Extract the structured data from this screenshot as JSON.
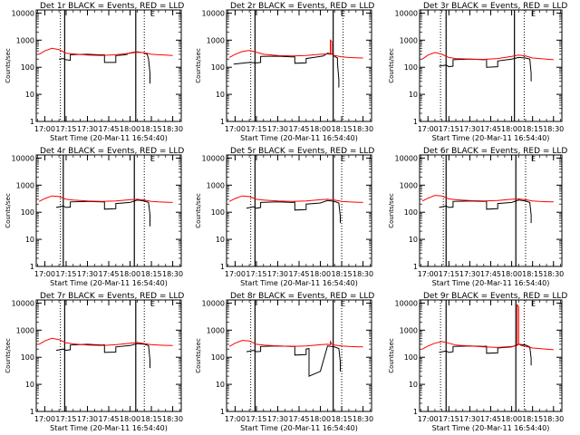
{
  "figure": {
    "x_label": "Start Time (20-Mar-11 16:54:40)",
    "y_label": "Counts/sec",
    "x_tick_labels": [
      "17:00",
      "17:15",
      "17:30",
      "17:45",
      "18:00",
      "18:15",
      "18:30"
    ],
    "y_tick_labels": [
      "1",
      "10",
      "100",
      "1000",
      "10000"
    ],
    "corner_mark": "E",
    "colors": {
      "events": "#000000",
      "lld": "#ff0000",
      "axes": "#000000",
      "background": "#ffffff"
    }
  },
  "chart_data": [
    {
      "type": "line",
      "title": "Det 1r BLACK = Events, RED = LLD",
      "xlabel": "Start Time (20-Mar-11 16:54:40)",
      "ylabel": "Counts/sec",
      "xlim": [
        "16:54",
        "18:36"
      ],
      "ylim": [
        1,
        13000
      ],
      "y_scale": "log",
      "vlines": {
        "solid": [
          "17:14",
          "18:04"
        ],
        "dotted": [
          "17:11",
          "18:10"
        ]
      },
      "series": [
        {
          "name": "Events",
          "color": "#000000",
          "x": [
            "17:10",
            "17:13",
            "17:15",
            "17:18",
            "17:18",
            "17:30",
            "17:40",
            "17:42",
            "17:42",
            "17:50",
            "17:50",
            "17:55",
            "17:58",
            "17:58",
            "18:02",
            "18:05",
            "18:10",
            "18:12",
            "18:13",
            "18:14",
            "18:14"
          ],
          "y": [
            200,
            210,
            190,
            180,
            290,
            300,
            285,
            290,
            150,
            150,
            270,
            280,
            300,
            320,
            350,
            370,
            340,
            300,
            200,
            60,
            25
          ]
        },
        {
          "name": "LLD",
          "color": "#ff0000",
          "x": [
            "16:56",
            "17:00",
            "17:05",
            "17:10",
            "17:15",
            "17:20",
            "17:30",
            "17:40",
            "17:50",
            "18:00",
            "18:05",
            "18:10",
            "18:15",
            "18:20",
            "18:25",
            "18:30"
          ],
          "y": [
            300,
            400,
            500,
            450,
            330,
            310,
            280,
            270,
            290,
            330,
            360,
            340,
            300,
            290,
            280,
            270
          ]
        }
      ]
    },
    {
      "type": "line",
      "title": "Det 2r BLACK = Events, RED = LLD",
      "xlabel": "Start Time (20-Mar-11 16:54:40)",
      "ylabel": "Counts/sec",
      "xlim": [
        "16:54",
        "18:36"
      ],
      "ylim": [
        1,
        13000
      ],
      "y_scale": "log",
      "vlines": {
        "solid": [
          "17:14",
          "18:09"
        ],
        "dotted": [
          "17:11",
          "18:16"
        ]
      },
      "series": [
        {
          "name": "Events",
          "color": "#000000",
          "x": [
            "16:59",
            "17:05",
            "17:10",
            "17:15",
            "17:18",
            "17:18",
            "17:30",
            "17:40",
            "17:42",
            "17:42",
            "17:50",
            "17:50",
            "17:58",
            "18:02",
            "18:05",
            "18:09",
            "18:10",
            "18:12",
            "18:12",
            "18:13",
            "18:13"
          ],
          "y": [
            130,
            140,
            150,
            145,
            150,
            250,
            255,
            240,
            245,
            140,
            145,
            210,
            240,
            260,
            330,
            300,
            250,
            220,
            140,
            35,
            18
          ]
        },
        {
          "name": "LLD",
          "color": "#ff0000",
          "x": [
            "16:56",
            "17:00",
            "17:05",
            "17:10",
            "17:15",
            "17:20",
            "17:30",
            "17:40",
            "17:50",
            "18:00",
            "18:05",
            "18:07",
            "18:07",
            "18:08",
            "18:08",
            "18:10",
            "18:15",
            "18:20",
            "18:25",
            "18:30"
          ],
          "y": [
            230,
            300,
            380,
            420,
            360,
            300,
            270,
            260,
            270,
            300,
            310,
            300,
            1000,
            900,
            300,
            270,
            240,
            230,
            225,
            220
          ]
        }
      ]
    },
    {
      "type": "line",
      "title": "Det 3r BLACK = Events, RED = LLD",
      "xlabel": "Start Time (20-Mar-11 16:54:40)",
      "ylabel": "Counts/sec",
      "xlim": [
        "16:54",
        "18:36"
      ],
      "ylim": [
        1,
        13000
      ],
      "y_scale": "log",
      "vlines": {
        "solid": [
          "17:13",
          "18:02"
        ],
        "dotted": [
          "17:09",
          "18:09"
        ]
      },
      "series": [
        {
          "name": "Events",
          "color": "#000000",
          "x": [
            "17:08",
            "17:13",
            "17:15",
            "17:18",
            "17:18",
            "17:30",
            "17:40",
            "17:42",
            "17:42",
            "17:50",
            "17:50",
            "18:00",
            "18:05",
            "18:10",
            "18:13",
            "18:14",
            "18:14"
          ],
          "y": [
            110,
            120,
            105,
            110,
            190,
            200,
            190,
            195,
            100,
            105,
            170,
            200,
            230,
            220,
            200,
            60,
            30
          ]
        },
        {
          "name": "LLD",
          "color": "#ff0000",
          "x": [
            "16:56",
            "17:00",
            "17:05",
            "17:10",
            "17:15",
            "17:20",
            "17:30",
            "17:40",
            "17:50",
            "18:00",
            "18:05",
            "18:10",
            "18:15",
            "18:20",
            "18:25",
            "18:30"
          ],
          "y": [
            200,
            280,
            350,
            300,
            230,
            210,
            200,
            195,
            210,
            250,
            280,
            260,
            220,
            210,
            200,
            190
          ]
        }
      ]
    },
    {
      "type": "line",
      "title": "Det 4r BLACK = Events, RED = LLD",
      "xlabel": "Start Time (20-Mar-11 16:54:40)",
      "ylabel": "Counts/sec",
      "xlim": [
        "16:54",
        "18:36"
      ],
      "ylim": [
        1,
        13000
      ],
      "y_scale": "log",
      "vlines": {
        "solid": [
          "17:13",
          "18:03"
        ],
        "dotted": [
          "17:11",
          "18:10"
        ]
      },
      "series": [
        {
          "name": "Events",
          "color": "#000000",
          "x": [
            "17:08",
            "17:13",
            "17:15",
            "17:18",
            "17:18",
            "17:30",
            "17:40",
            "17:42",
            "17:42",
            "17:50",
            "17:50",
            "18:00",
            "18:05",
            "18:10",
            "18:13",
            "18:14",
            "18:14"
          ],
          "y": [
            150,
            170,
            150,
            155,
            240,
            250,
            240,
            245,
            130,
            135,
            210,
            230,
            280,
            260,
            230,
            80,
            30
          ]
        },
        {
          "name": "LLD",
          "color": "#ff0000",
          "x": [
            "16:56",
            "17:00",
            "17:05",
            "17:10",
            "17:15",
            "17:20",
            "17:30",
            "17:40",
            "17:50",
            "18:00",
            "18:05",
            "18:10",
            "18:15",
            "18:20",
            "18:25",
            "18:30"
          ],
          "y": [
            250,
            320,
            400,
            380,
            300,
            280,
            260,
            250,
            260,
            290,
            300,
            280,
            250,
            240,
            235,
            230
          ]
        }
      ]
    },
    {
      "type": "line",
      "title": "Det 5r BLACK = Events, RED = LLD",
      "xlabel": "Start Time (20-Mar-11 16:54:40)",
      "ylabel": "Counts/sec",
      "xlim": [
        "16:54",
        "18:36"
      ],
      "ylim": [
        1,
        13000
      ],
      "y_scale": "log",
      "vlines": {
        "solid": [
          "17:14",
          "18:09"
        ],
        "dotted": [
          "17:11",
          "18:15"
        ]
      },
      "series": [
        {
          "name": "Events",
          "color": "#000000",
          "x": [
            "17:08",
            "17:13",
            "17:15",
            "17:18",
            "17:18",
            "17:30",
            "17:40",
            "17:42",
            "17:42",
            "17:50",
            "17:50",
            "18:00",
            "18:05",
            "18:10",
            "18:13",
            "18:14",
            "18:14"
          ],
          "y": [
            140,
            160,
            140,
            150,
            230,
            240,
            230,
            235,
            120,
            125,
            200,
            220,
            270,
            250,
            220,
            70,
            40
          ]
        },
        {
          "name": "LLD",
          "color": "#ff0000",
          "x": [
            "16:56",
            "17:00",
            "17:05",
            "17:10",
            "17:15",
            "17:20",
            "17:30",
            "17:40",
            "17:50",
            "18:00",
            "18:05",
            "18:10",
            "18:15",
            "18:20",
            "18:25",
            "18:30"
          ],
          "y": [
            250,
            320,
            400,
            380,
            300,
            280,
            260,
            250,
            260,
            290,
            300,
            280,
            250,
            240,
            235,
            230
          ]
        }
      ]
    },
    {
      "type": "line",
      "title": "Det 6r BLACK = Events, RED = LLD",
      "xlabel": "Start Time (20-Mar-11 16:54:40)",
      "ylabel": "Counts/sec",
      "xlim": [
        "16:54",
        "18:36"
      ],
      "ylim": [
        1,
        13000
      ],
      "y_scale": "log",
      "vlines": {
        "solid": [
          "17:13",
          "18:03"
        ],
        "dotted": [
          "17:11",
          "18:10"
        ]
      },
      "series": [
        {
          "name": "Events",
          "color": "#000000",
          "x": [
            "17:08",
            "17:13",
            "17:15",
            "17:18",
            "17:18",
            "17:30",
            "17:40",
            "17:42",
            "17:42",
            "17:50",
            "17:50",
            "18:00",
            "18:05",
            "18:10",
            "18:13",
            "18:14",
            "18:14"
          ],
          "y": [
            150,
            170,
            150,
            155,
            250,
            260,
            250,
            255,
            130,
            135,
            210,
            230,
            280,
            260,
            230,
            80,
            40
          ]
        },
        {
          "name": "LLD",
          "color": "#ff0000",
          "x": [
            "16:56",
            "17:00",
            "17:05",
            "17:10",
            "17:15",
            "17:20",
            "17:30",
            "17:40",
            "17:50",
            "18:00",
            "18:05",
            "18:10",
            "18:15",
            "18:20",
            "18:25",
            "18:30"
          ],
          "y": [
            260,
            330,
            420,
            400,
            310,
            290,
            270,
            260,
            270,
            300,
            310,
            290,
            260,
            250,
            245,
            240
          ]
        }
      ]
    },
    {
      "type": "line",
      "title": "Det 7r BLACK = Events, RED = LLD",
      "xlabel": "Start Time (20-Mar-11 16:54:40)",
      "ylabel": "Counts/sec",
      "xlim": [
        "16:54",
        "18:36"
      ],
      "ylim": [
        1,
        13000
      ],
      "y_scale": "log",
      "vlines": {
        "solid": [
          "17:14",
          "18:04"
        ],
        "dotted": [
          "17:11",
          "18:10"
        ]
      },
      "series": [
        {
          "name": "Events",
          "color": "#000000",
          "x": [
            "17:08",
            "17:13",
            "17:15",
            "17:18",
            "17:18",
            "17:30",
            "17:40",
            "17:42",
            "17:42",
            "17:50",
            "17:50",
            "18:00",
            "18:05",
            "18:10",
            "18:13",
            "18:14",
            "18:14"
          ],
          "y": [
            180,
            200,
            180,
            190,
            280,
            300,
            280,
            290,
            150,
            155,
            240,
            270,
            320,
            300,
            270,
            80,
            40
          ]
        },
        {
          "name": "LLD",
          "color": "#ff0000",
          "x": [
            "16:56",
            "17:00",
            "17:05",
            "17:10",
            "17:15",
            "17:20",
            "17:30",
            "17:40",
            "17:50",
            "18:00",
            "18:05",
            "18:10",
            "18:15",
            "18:20",
            "18:25",
            "18:30"
          ],
          "y": [
            300,
            400,
            500,
            450,
            340,
            310,
            280,
            270,
            290,
            330,
            350,
            320,
            290,
            280,
            275,
            270
          ]
        }
      ]
    },
    {
      "type": "line",
      "title": "Det 8r BLACK = Events, RED = LLD",
      "xlabel": "Start Time (20-Mar-11 16:54:40)",
      "ylabel": "Counts/sec",
      "xlim": [
        "16:54",
        "18:36"
      ],
      "ylim": [
        1,
        13000
      ],
      "y_scale": "log",
      "vlines": {
        "solid": [
          "17:14",
          "18:09"
        ],
        "dotted": [
          "17:11",
          "18:15"
        ]
      },
      "series": [
        {
          "name": "Events",
          "color": "#000000",
          "x": [
            "17:08",
            "17:13",
            "17:15",
            "17:18",
            "17:18",
            "17:30",
            "17:40",
            "17:42",
            "17:42",
            "17:50",
            "17:50",
            "17:52",
            "17:52",
            "18:00",
            "18:05",
            "18:10",
            "18:13",
            "18:14",
            "18:14"
          ],
          "y": [
            160,
            180,
            160,
            165,
            250,
            260,
            250,
            255,
            120,
            125,
            200,
            210,
            20,
            30,
            260,
            240,
            210,
            70,
            30
          ]
        },
        {
          "name": "LLD",
          "color": "#ff0000",
          "x": [
            "16:56",
            "17:00",
            "17:05",
            "17:10",
            "17:15",
            "17:20",
            "17:30",
            "17:40",
            "17:50",
            "18:00",
            "18:05",
            "18:07",
            "18:07",
            "18:08",
            "18:10",
            "18:15",
            "18:20",
            "18:25",
            "18:30"
          ],
          "y": [
            250,
            330,
            420,
            400,
            300,
            280,
            260,
            250,
            260,
            290,
            300,
            290,
            400,
            300,
            280,
            260,
            250,
            245,
            240
          ]
        }
      ]
    },
    {
      "type": "line",
      "title": "Det 9r BLACK = Events, RED = LLD",
      "xlabel": "Start Time (20-Mar-11 16:54:40)",
      "ylabel": "Counts/sec",
      "xlim": [
        "16:54",
        "18:36"
      ],
      "ylim": [
        1,
        13000
      ],
      "y_scale": "log",
      "vlines": {
        "solid": [
          "17:13",
          "18:03"
        ],
        "dotted": [
          "17:09",
          "18:09"
        ]
      },
      "series": [
        {
          "name": "Events",
          "color": "#000000",
          "x": [
            "17:08",
            "17:13",
            "17:15",
            "17:18",
            "17:18",
            "17:30",
            "17:40",
            "17:42",
            "17:42",
            "17:50",
            "17:50",
            "18:00",
            "18:05",
            "18:10",
            "18:13",
            "18:14",
            "18:14"
          ],
          "y": [
            150,
            170,
            150,
            160,
            250,
            260,
            250,
            255,
            140,
            145,
            220,
            240,
            300,
            280,
            240,
            90,
            50
          ]
        },
        {
          "name": "LLD",
          "color": "#ff0000",
          "x": [
            "16:56",
            "17:00",
            "17:05",
            "17:10",
            "17:15",
            "17:20",
            "17:30",
            "17:40",
            "17:50",
            "18:00",
            "18:03",
            "18:04",
            "18:04",
            "18:05",
            "18:05",
            "18:07",
            "18:10",
            "18:15",
            "18:20",
            "18:25",
            "18:30"
          ],
          "y": [
            200,
            260,
            330,
            380,
            330,
            280,
            260,
            240,
            230,
            250,
            260,
            270,
            9000,
            7000,
            300,
            270,
            250,
            220,
            210,
            200,
            190
          ]
        }
      ]
    }
  ]
}
